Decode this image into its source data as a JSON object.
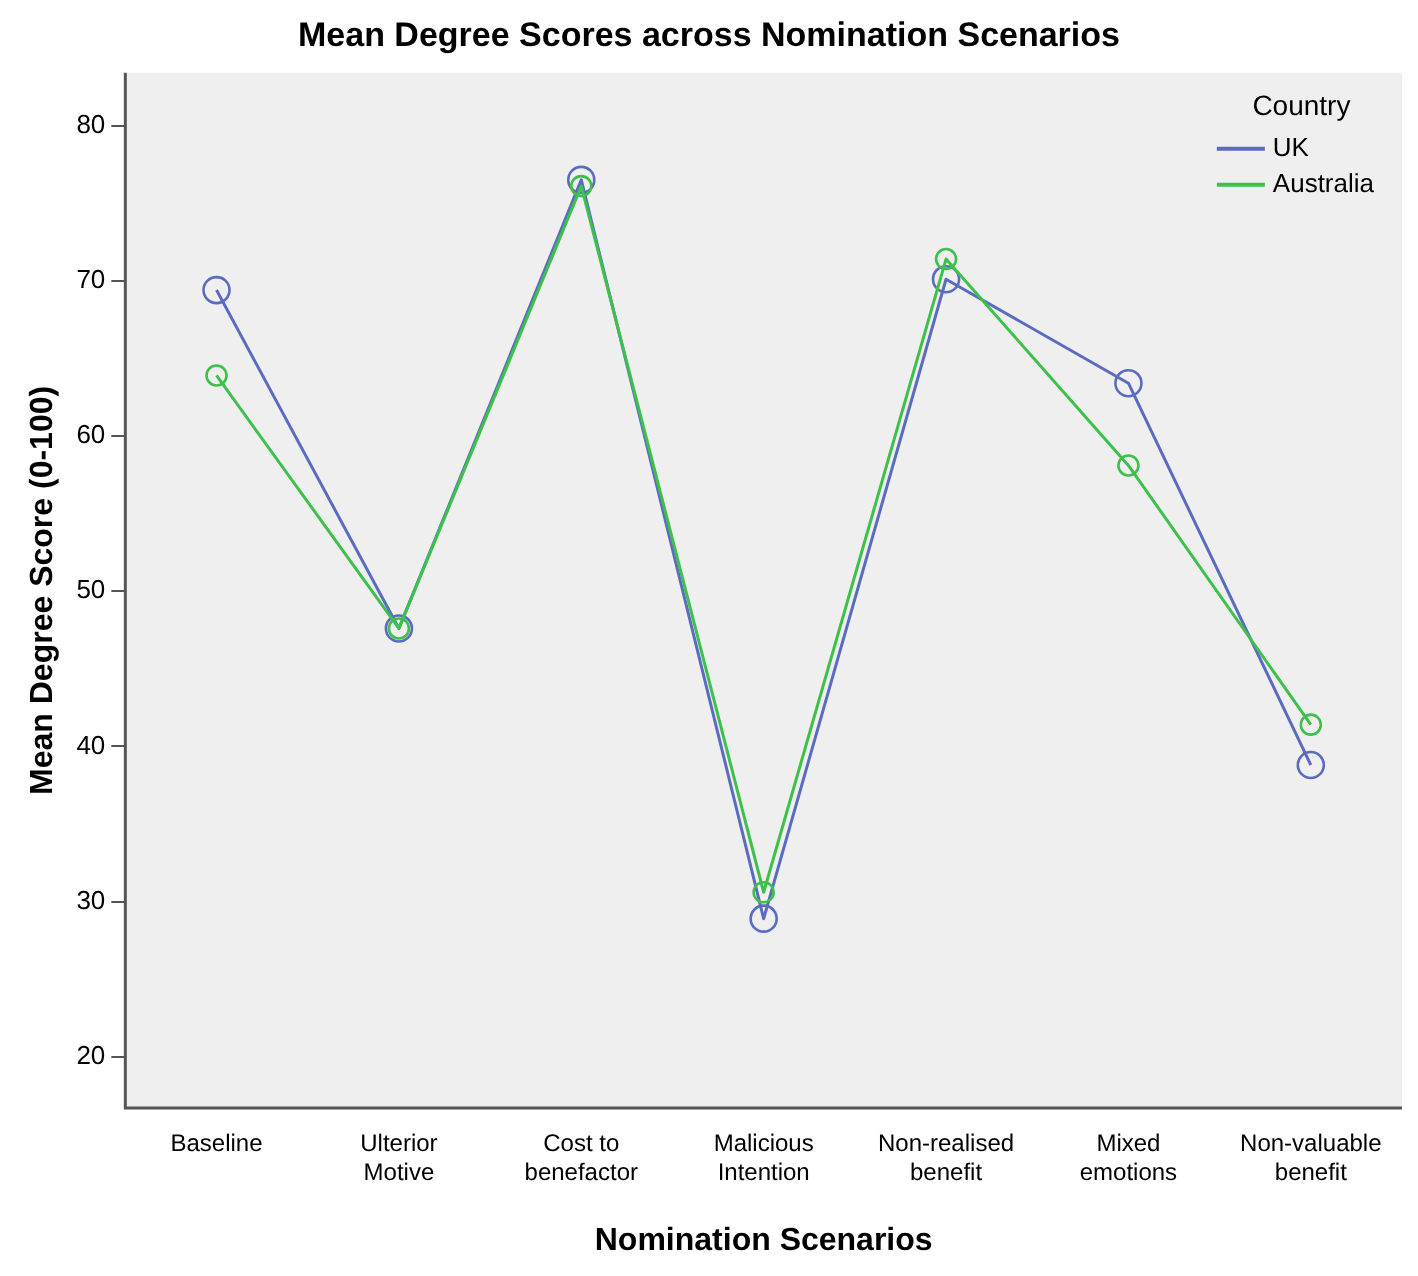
{
  "chart_data": {
    "type": "line",
    "title": "Mean Degree Scores across Nomination Scenarios",
    "xlabel": "Nomination Scenarios",
    "ylabel": "Mean Degree Score (0-100)",
    "legend_title": "Country",
    "categories": [
      [
        "Baseline"
      ],
      [
        "Ulterior",
        "Motive"
      ],
      [
        "Cost to",
        "benefactor"
      ],
      [
        "Malicious",
        "Intention"
      ],
      [
        "Non-realised",
        "benefit"
      ],
      [
        "Mixed",
        "emotions"
      ],
      [
        "Non-valuable",
        "benefit"
      ]
    ],
    "series": [
      {
        "name": "UK",
        "color": "#5b6bc0",
        "values": [
          69.4,
          47.6,
          76.5,
          28.9,
          70.1,
          63.4,
          38.8
        ]
      },
      {
        "name": "Australia",
        "color": "#3ec14b",
        "values": [
          63.9,
          47.6,
          76.1,
          30.6,
          71.4,
          58.1,
          41.4
        ]
      }
    ],
    "ylim": [
      16.7,
      83.4
    ],
    "yticks": [
      20,
      30,
      40,
      50,
      60,
      70,
      80
    ],
    "grid": false,
    "legend": "top right",
    "marker": "circle",
    "line_style": "solid"
  }
}
